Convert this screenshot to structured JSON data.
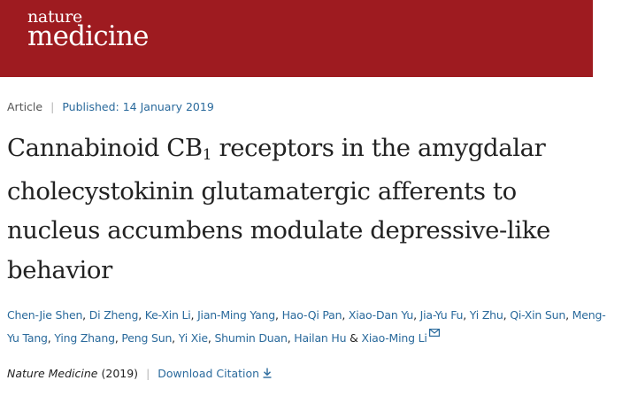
{
  "brand": {
    "line1": "nature",
    "line2": "medicine",
    "color": "#9e1b20"
  },
  "meta": {
    "type": "Article",
    "published_label": "Published:",
    "published_date": "14 January 2019"
  },
  "title": {
    "part1": "Cannabinoid CB",
    "subscript": "1",
    "part2": " receptors in the amygdalar cholecystokinin glutamatergic afferents to nucleus accumbens modulate depressive-like behavior"
  },
  "authors": [
    "Chen-Jie Shen",
    "Di Zheng",
    "Ke-Xin Li",
    "Jian-Ming Yang",
    "Hao-Qi Pan",
    "Xiao-Dan Yu",
    "Jia-Yu Fu",
    "Yi Zhu",
    "Qi-Xin Sun",
    "Meng-Yu Tang",
    "Ying Zhang",
    "Peng Sun",
    "Yi Xie",
    "Shumin Duan",
    "Hailan Hu",
    "Xiao-Ming Li"
  ],
  "authors_separator": ", ",
  "authors_conjunction": "&",
  "contact_icon": "envelope-icon",
  "citation": {
    "journal": "Nature Medicine",
    "year": "(2019)",
    "download_label": "Download Citation",
    "download_icon": "download-arrow-icon"
  },
  "colors": {
    "link": "#2a6a9c",
    "text": "#222222",
    "muted": "#555555"
  }
}
